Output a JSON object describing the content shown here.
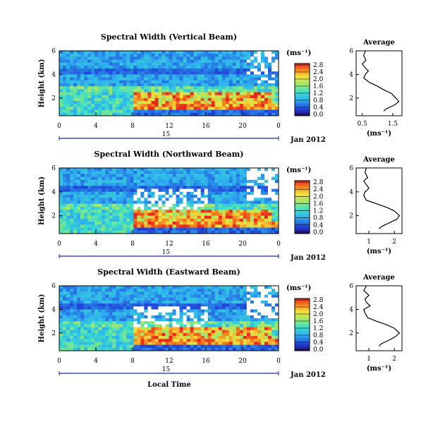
{
  "figure": {
    "xaxis_label": "Local Time",
    "date_label": "Jan 2012",
    "day_label": "15",
    "unit_label": "(ms⁻¹)"
  },
  "chart_data": [
    {
      "type": "heatmap",
      "title": "Spectral Width (Vertical Beam)",
      "ylabel": "Height (km)",
      "xlabel": "Local Time",
      "x_ticks": [
        "0",
        "4",
        "8",
        "12",
        "16",
        "20",
        "0"
      ],
      "xlim": [
        0,
        24
      ],
      "y_ticks": [
        "2",
        "4",
        "6"
      ],
      "ylim": [
        0.5,
        6
      ],
      "colorbar_ticks": [
        "0.0",
        "0.4",
        "0.8",
        "1.2",
        "1.6",
        "2.0",
        "2.4",
        "2.8"
      ],
      "colorbar_range": [
        0,
        2.8
      ]
    },
    {
      "type": "heatmap",
      "title": "Spectral Width (Northward Beam)",
      "ylabel": "Height (km)",
      "xlabel": "Local Time",
      "x_ticks": [
        "0",
        "4",
        "8",
        "12",
        "16",
        "20",
        "0"
      ],
      "xlim": [
        0,
        24
      ],
      "y_ticks": [
        "2",
        "4",
        "6"
      ],
      "ylim": [
        0.5,
        6
      ],
      "colorbar_ticks": [
        "0.0",
        "0.4",
        "0.8",
        "1.2",
        "1.6",
        "2.0",
        "2.4",
        "2.8"
      ],
      "colorbar_range": [
        0,
        2.8
      ]
    },
    {
      "type": "heatmap",
      "title": "Spectral Width (Eastward Beam)",
      "ylabel": "Height (km)",
      "xlabel": "Local Time",
      "x_ticks": [
        "0",
        "4",
        "8",
        "12",
        "16",
        "20",
        "0"
      ],
      "xlim": [
        0,
        24
      ],
      "y_ticks": [
        "2",
        "4",
        "6"
      ],
      "ylim": [
        0.5,
        6
      ],
      "colorbar_ticks": [
        "0.0",
        "0.4",
        "0.8",
        "1.2",
        "1.6",
        "2.0",
        "2.4",
        "2.8"
      ],
      "colorbar_range": [
        0,
        2.8
      ]
    },
    {
      "type": "line",
      "title": "Average",
      "xlabel": "(ms⁻¹)",
      "x_ticks": [
        "0.5",
        "1.5"
      ],
      "xlim": [
        0.3,
        1.8
      ],
      "ylim": [
        0.5,
        6
      ],
      "y_ticks": [
        "2",
        "4",
        "6"
      ],
      "series": [
        {
          "x": [
            0.6,
            0.55,
            0.62,
            0.5,
            0.58,
            0.7,
            0.6,
            0.55,
            0.75,
            1.0,
            1.2,
            1.45,
            1.6,
            1.7,
            1.55,
            1.3,
            1.2
          ],
          "y": [
            6,
            5.6,
            5.2,
            4.9,
            4.6,
            4.3,
            4.0,
            3.7,
            3.3,
            3.0,
            2.7,
            2.4,
            2.0,
            1.7,
            1.4,
            1.1,
            0.9
          ]
        }
      ]
    },
    {
      "type": "line",
      "title": "Average",
      "xlabel": "(ms⁻¹)",
      "x_ticks": [
        "1",
        "2"
      ],
      "xlim": [
        0.5,
        2.3
      ],
      "ylim": [
        0.5,
        6
      ],
      "y_ticks": [
        "2",
        "4",
        "6"
      ],
      "series": [
        {
          "x": [
            0.9,
            0.85,
            0.95,
            0.8,
            0.9,
            1.0,
            0.85,
            0.8,
            0.9,
            1.3,
            1.7,
            2.0,
            2.2,
            2.1,
            1.8,
            1.5,
            1.4
          ],
          "y": [
            6,
            5.6,
            5.2,
            4.9,
            4.6,
            4.3,
            4.0,
            3.7,
            3.3,
            3.0,
            2.7,
            2.4,
            2.0,
            1.7,
            1.4,
            1.1,
            0.9
          ]
        }
      ]
    },
    {
      "type": "line",
      "title": "Average",
      "xlabel": "(ms⁻¹)",
      "x_ticks": [
        "1",
        "2"
      ],
      "xlim": [
        0.5,
        2.3
      ],
      "ylim": [
        0.5,
        6
      ],
      "y_ticks": [
        "2",
        "4",
        "6"
      ],
      "series": [
        {
          "x": [
            0.9,
            0.8,
            1.0,
            0.85,
            0.9,
            1.05,
            0.8,
            0.85,
            0.95,
            1.3,
            1.7,
            2.0,
            2.2,
            2.05,
            1.8,
            1.5,
            1.4
          ],
          "y": [
            6,
            5.6,
            5.2,
            4.9,
            4.6,
            4.3,
            4.0,
            3.7,
            3.3,
            3.0,
            2.7,
            2.4,
            2.0,
            1.7,
            1.4,
            1.1,
            0.9
          ]
        }
      ]
    }
  ]
}
